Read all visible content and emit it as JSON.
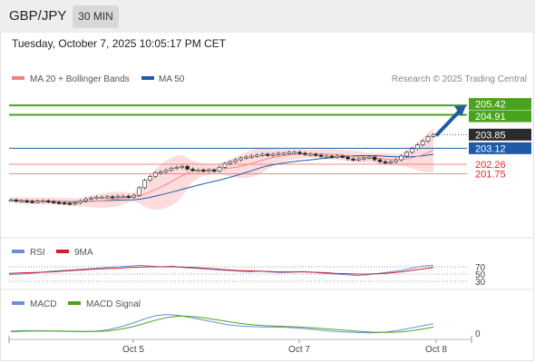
{
  "header": {
    "symbol": "GBP/JPY",
    "interval": "30 MIN",
    "datetime": "Tuesday, October 7, 2025 10:05:17 PM CET"
  },
  "legend": {
    "items": [
      {
        "label": "MA 20 + Bollinger Bands",
        "color": "#f08080"
      },
      {
        "label": "MA 50",
        "color": "#1f5aa6"
      }
    ],
    "credit": "Research © 2025 Trading Central"
  },
  "colors": {
    "green": "#4aa31c",
    "blue": "#1f5aa6",
    "dark": "#2b2b2b",
    "red_line": "#f08a8a",
    "red_text": "#e0262b",
    "band": "#fbd6d6",
    "candle": "#2f6b2f",
    "rsi": "#6b8fe0",
    "rsi_ma": "#d0202a",
    "macd": "#6b8fe0",
    "signal": "#4aa31c"
  },
  "chart_data": [
    {
      "type": "candlestick",
      "title": "GBP/JPY",
      "ylim": [
        199.0,
        206.3
      ],
      "x_ticks": [
        "Oct 5",
        "Oct 7",
        "Oct 8"
      ],
      "close_series": [
        200.35,
        200.3,
        200.3,
        200.27,
        200.25,
        200.28,
        200.3,
        200.26,
        200.22,
        200.2,
        200.18,
        200.15,
        200.2,
        200.3,
        200.4,
        200.45,
        200.5,
        200.5,
        200.52,
        200.5,
        200.55,
        200.55,
        200.5,
        200.6,
        201.0,
        201.4,
        201.6,
        201.8,
        201.85,
        201.95,
        202.05,
        202.1,
        202.15,
        202.0,
        201.95,
        201.95,
        201.9,
        201.95,
        201.9,
        202.1,
        202.3,
        202.4,
        202.5,
        202.6,
        202.65,
        202.7,
        202.75,
        202.8,
        202.75,
        202.8,
        202.85,
        202.85,
        202.9,
        202.9,
        202.85,
        202.8,
        202.8,
        202.75,
        202.7,
        202.7,
        202.65,
        202.7,
        202.65,
        202.55,
        202.5,
        202.55,
        202.6,
        202.65,
        202.5,
        202.4,
        202.35,
        202.4,
        202.5,
        202.7,
        202.9,
        203.1,
        203.3,
        203.5,
        203.75,
        203.85
      ],
      "indicators": [
        "MA 20 + Bollinger Bands",
        "MA 50"
      ],
      "levels": [
        {
          "value": 205.42,
          "label": "205.42",
          "role": "target"
        },
        {
          "value": 204.91,
          "label": "204.91",
          "role": "resistance"
        },
        {
          "value": 203.85,
          "label": "203.85",
          "role": "last price"
        },
        {
          "value": 203.12,
          "label": "203.12",
          "role": "pivot"
        },
        {
          "value": 202.26,
          "label": "202.26",
          "role": "support"
        },
        {
          "value": 201.75,
          "label": "201.75",
          "role": "support"
        }
      ]
    },
    {
      "type": "line",
      "title": "RSI",
      "series": [
        {
          "name": "RSI",
          "values": [
            48,
            50,
            52,
            55,
            58,
            60,
            62,
            64,
            66,
            68,
            70,
            72,
            74,
            72,
            70,
            72,
            68,
            66,
            64,
            62,
            60,
            58,
            56,
            58,
            56,
            54,
            55,
            57,
            55,
            52,
            50,
            48,
            46,
            48,
            52,
            56,
            60,
            66,
            72,
            74
          ]
        },
        {
          "name": "9MA",
          "values": [
            52,
            53,
            54,
            55,
            56,
            58,
            60,
            62,
            64,
            65,
            66,
            68,
            69,
            70,
            70,
            70,
            69,
            68,
            66,
            64,
            62,
            60,
            59,
            58,
            57,
            56,
            56,
            56,
            55,
            54,
            52,
            51,
            50,
            50,
            51,
            53,
            56,
            60,
            64,
            68
          ]
        }
      ],
      "y_ticks": [
        "70",
        "50",
        "30"
      ]
    },
    {
      "type": "line",
      "title": "MACD",
      "series": [
        {
          "name": "MACD",
          "values": [
            0.02,
            0.05,
            0.04,
            0.03,
            0.02,
            0.01,
            0.0,
            0.02,
            0.08,
            0.2,
            0.35,
            0.55,
            0.7,
            0.75,
            0.7,
            0.6,
            0.5,
            0.4,
            0.3,
            0.25,
            0.22,
            0.2,
            0.2,
            0.18,
            0.15,
            0.1,
            0.05,
            0.0,
            -0.02,
            -0.04,
            -0.05,
            -0.02,
            0.05,
            0.15,
            0.25,
            0.35
          ]
        },
        {
          "name": "MACD Signal",
          "values": [
            0.0,
            0.02,
            0.03,
            0.03,
            0.03,
            0.02,
            0.01,
            0.01,
            0.03,
            0.1,
            0.2,
            0.35,
            0.5,
            0.62,
            0.68,
            0.66,
            0.6,
            0.52,
            0.44,
            0.36,
            0.3,
            0.26,
            0.24,
            0.22,
            0.2,
            0.17,
            0.13,
            0.09,
            0.05,
            0.01,
            -0.02,
            -0.03,
            -0.02,
            0.03,
            0.1,
            0.2
          ]
        }
      ],
      "y_ticks": [
        "0"
      ]
    }
  ],
  "panels": {
    "rsi": {
      "legend": [
        {
          "label": "RSI",
          "color": "#6b8fe0"
        },
        {
          "label": "9MA",
          "color": "#d0202a"
        }
      ]
    },
    "macd": {
      "legend": [
        {
          "label": "MACD",
          "color": "#6b8fe0"
        },
        {
          "label": "MACD Signal",
          "color": "#4aa31c"
        }
      ]
    }
  }
}
